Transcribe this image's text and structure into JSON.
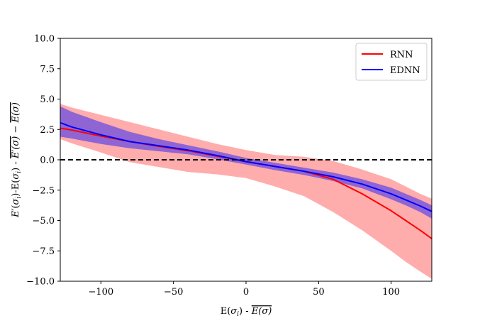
{
  "chart_data": {
    "type": "line",
    "title": "",
    "xlabel": "E(σᵢ) - E(σ)̅",
    "ylabel": "E′(σᵢ)-E(σᵢ) - E′(σ)̅ - E(σ)̅",
    "xlim": [
      -128,
      128
    ],
    "ylim": [
      -10,
      10
    ],
    "xticks": [
      -100,
      -50,
      0,
      50,
      100
    ],
    "yticks": [
      -10.0,
      -7.5,
      -5.0,
      -2.5,
      0.0,
      2.5,
      5.0,
      7.5,
      10.0
    ],
    "xtick_labels": [
      "−100",
      "−50",
      "0",
      "50",
      "100"
    ],
    "ytick_labels": [
      "−10.0",
      "−7.5",
      "−5.0",
      "−2.5",
      "0.0",
      "2.5",
      "5.0",
      "7.5",
      "10.0"
    ],
    "reference_line": {
      "y": 0,
      "style": "dashed",
      "color": "#000000"
    },
    "legend": {
      "position": "top-right",
      "entries": [
        "RNN",
        "EDNN"
      ]
    },
    "grid": false,
    "series": [
      {
        "name": "RNN",
        "color": "#ff0000",
        "band_color": "#ff8080",
        "x": [
          -128,
          -120,
          -100,
          -80,
          -60,
          -40,
          -20,
          0,
          20,
          40,
          60,
          80,
          100,
          110,
          120,
          128
        ],
        "y": [
          2.6,
          2.45,
          1.95,
          1.5,
          1.1,
          0.75,
          0.3,
          -0.15,
          -0.55,
          -0.95,
          -1.6,
          -2.8,
          -4.2,
          -5.0,
          -5.8,
          -6.5
        ],
        "lower": [
          1.7,
          1.35,
          0.6,
          -0.2,
          -0.6,
          -1.0,
          -1.2,
          -1.5,
          -2.2,
          -3.0,
          -4.3,
          -5.8,
          -7.5,
          -8.4,
          -9.2,
          -9.8
        ],
        "upper": [
          4.6,
          4.3,
          3.7,
          3.1,
          2.5,
          1.9,
          1.3,
          0.8,
          0.4,
          0.25,
          -0.1,
          -0.8,
          -1.6,
          -2.2,
          -2.8,
          -3.2
        ]
      },
      {
        "name": "EDNN",
        "color": "#0000ff",
        "band_color": "#6a4de0",
        "x": [
          -128,
          -120,
          -100,
          -80,
          -60,
          -40,
          -20,
          0,
          20,
          40,
          60,
          80,
          100,
          110,
          120,
          128
        ],
        "y": [
          3.05,
          2.7,
          2.05,
          1.5,
          1.15,
          0.8,
          0.35,
          -0.15,
          -0.55,
          -0.95,
          -1.4,
          -2.0,
          -2.8,
          -3.3,
          -3.8,
          -4.25
        ],
        "lower": [
          1.9,
          1.75,
          1.3,
          0.95,
          0.7,
          0.45,
          0.05,
          -0.4,
          -0.85,
          -1.25,
          -1.75,
          -2.35,
          -3.25,
          -3.75,
          -4.3,
          -4.85
        ],
        "upper": [
          4.4,
          3.95,
          3.1,
          2.3,
          1.7,
          1.2,
          0.7,
          0.15,
          -0.25,
          -0.65,
          -1.05,
          -1.6,
          -2.3,
          -2.8,
          -3.3,
          -3.75
        ]
      }
    ]
  }
}
